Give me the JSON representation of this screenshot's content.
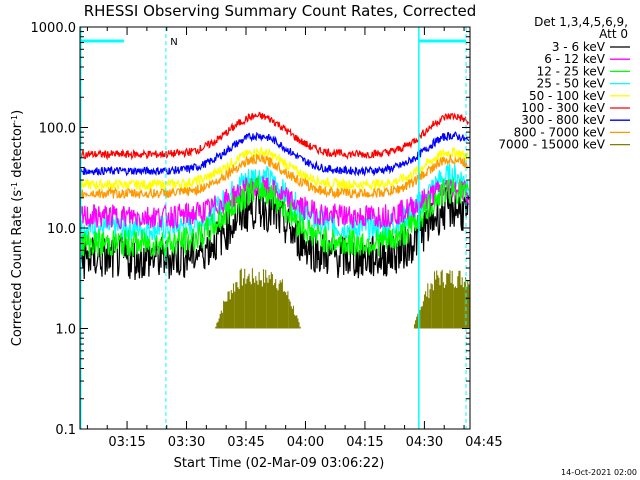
{
  "chart_data": {
    "type": "line",
    "title": "RHESSI Observing Summary Count Rates, Corrected",
    "xlabel": "Start Time (02-Mar-09 03:06:22)",
    "ylabel_main": "Corrected Count Rate (s",
    "ylabel_sup1": "-1",
    "ylabel_mid": " detector",
    "ylabel_sup2": "-1",
    "ylabel_end": ")",
    "yscale": "log",
    "ylim": [
      0.1,
      1000
    ],
    "xlim_minutes": [
      3.13,
      101.5
    ],
    "yticks": [
      {
        "value": 1000,
        "label": "1000.0"
      },
      {
        "value": 100,
        "label": "100.0"
      },
      {
        "value": 10,
        "label": "10.0"
      },
      {
        "value": 1,
        "label": "1.0"
      },
      {
        "value": 0.1,
        "label": "0.1"
      }
    ],
    "xticks": [
      {
        "minute": 15,
        "label": "03:15"
      },
      {
        "minute": 30,
        "label": "03:30"
      },
      {
        "minute": 45,
        "label": "03:45"
      },
      {
        "minute": 60,
        "label": "04:00"
      },
      {
        "minute": 75,
        "label": "04:15"
      },
      {
        "minute": 90,
        "label": "04:30"
      },
      {
        "minute": 105,
        "label": "04:45"
      }
    ],
    "night_marker": "N",
    "legend_header": [
      "Det 1,3,4,5,6,9,",
      "Att 0"
    ],
    "series": [
      {
        "name": "3 - 6 keV",
        "color": "#000000",
        "min": 5,
        "max": 16,
        "noise": 0.22
      },
      {
        "name": "6 - 12 keV",
        "color": "#ff00ff",
        "min": 13,
        "max": 25,
        "noise": 0.12
      },
      {
        "name": "12 - 25 keV",
        "color": "#00ff00",
        "min": 7,
        "max": 24,
        "noise": 0.14
      },
      {
        "name": "25 - 50 keV",
        "color": "#00ffff",
        "min": 10,
        "max": 33,
        "noise": 0.13
      },
      {
        "name": "50 - 100 keV",
        "color": "#ffff00",
        "min": 27,
        "max": 57,
        "noise": 0.05
      },
      {
        "name": "100 - 300 keV",
        "color": "#ff0000",
        "min": 54,
        "max": 130,
        "noise": 0.04
      },
      {
        "name": "300 - 800 keV",
        "color": "#0000ff",
        "min": 37,
        "max": 83,
        "noise": 0.04
      },
      {
        "name": "800 - 7000 keV",
        "color": "#ff9900",
        "min": 22,
        "max": 48,
        "noise": 0.05
      },
      {
        "name": "7000 - 15000 keV",
        "color": "#808000",
        "min": 1,
        "max": 4,
        "noise": 0
      }
    ],
    "date_stamp": "14-Oct-2021 02:00"
  }
}
